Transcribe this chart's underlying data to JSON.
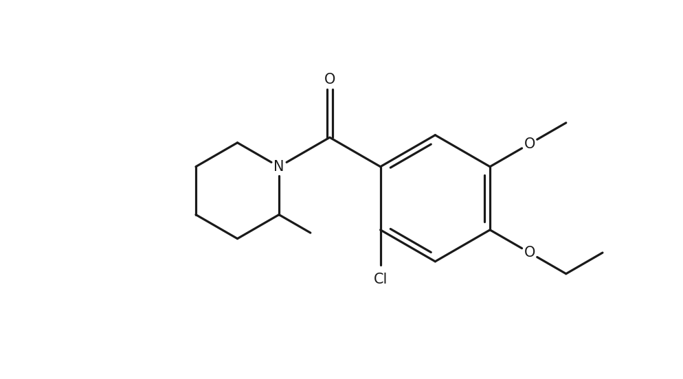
{
  "background_color": "#ffffff",
  "line_color": "#1a1a1a",
  "line_width": 2.3,
  "figsize": [
    9.94,
    5.52
  ],
  "dpi": 100,
  "font_size": 15,
  "xlim": [
    -1.0,
    10.5
  ],
  "ylim": [
    -0.5,
    5.8
  ]
}
